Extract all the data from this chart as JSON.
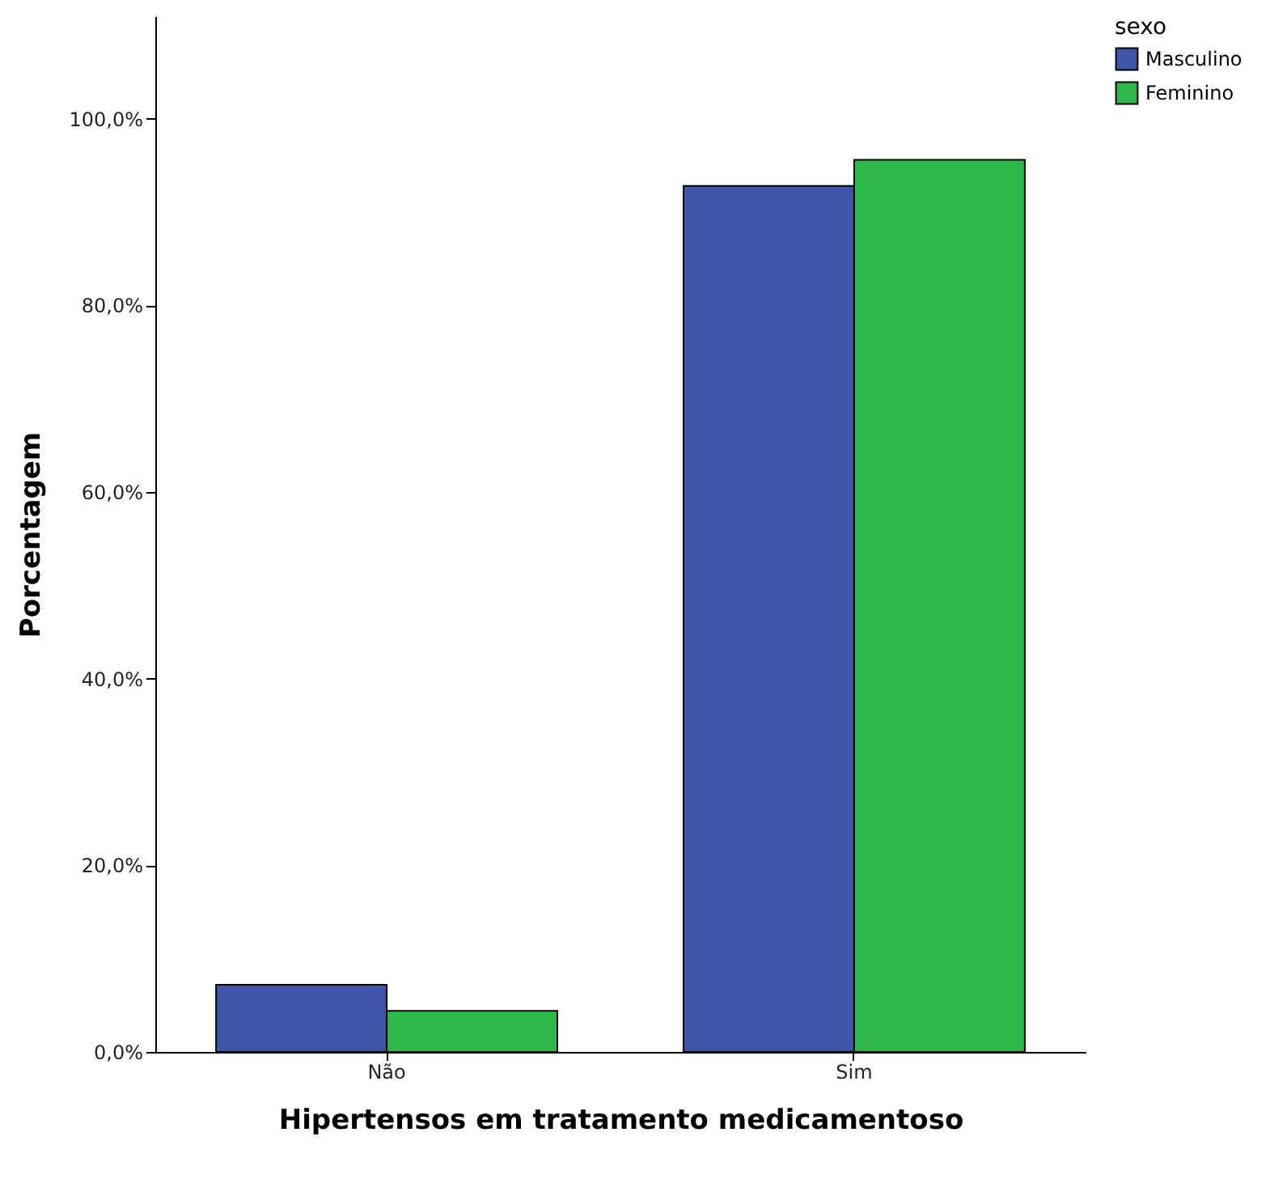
{
  "chart_data": {
    "type": "bar",
    "xlabel": "Hipertensos em tratamento medicamentoso",
    "ylabel": "Porcentagem",
    "legend_title": "sexo",
    "legend": "top right",
    "grid": false,
    "categories": [
      "Não",
      "Sim"
    ],
    "series": [
      {
        "name": "Masculino",
        "color": "#3f56a8",
        "values": [
          7.2,
          92.8
        ]
      },
      {
        "name": "Feminino",
        "color": "#2eb84a",
        "values": [
          4.4,
          95.6
        ]
      }
    ],
    "ylim": [
      0,
      111
    ],
    "yticks": [
      {
        "value": 0,
        "label": "0,0%"
      },
      {
        "value": 20,
        "label": "20,0%"
      },
      {
        "value": 40,
        "label": "40,0%"
      },
      {
        "value": 60,
        "label": "60,0%"
      },
      {
        "value": 80,
        "label": "80,0%"
      },
      {
        "value": 100,
        "label": "100,0%"
      }
    ]
  }
}
